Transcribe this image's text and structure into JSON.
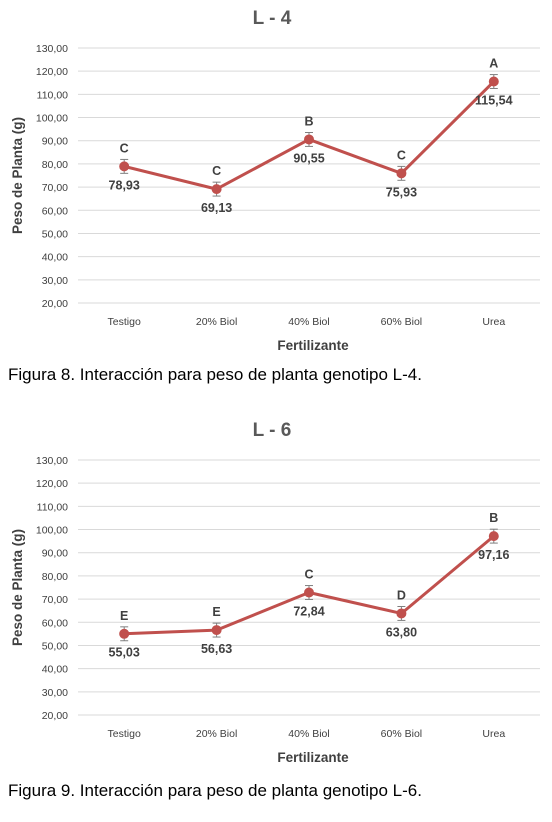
{
  "figures": [
    {
      "caption": "Figura 8. Interacción para peso de planta genotipo L-4.",
      "chart_data": {
        "type": "line",
        "title": "L - 4",
        "xlabel": "Fertilizante",
        "ylabel": "Peso de Planta (g)",
        "ylim": [
          20,
          130
        ],
        "ytick_step": 10,
        "ytick_labels": [
          "20,00",
          "30,00",
          "40,00",
          "50,00",
          "60,00",
          "70,00",
          "80,00",
          "90,00",
          "100,00",
          "110,00",
          "120,00",
          "130,00"
        ],
        "grid": true,
        "categories": [
          "Testigo",
          "20% Biol",
          "40% Biol",
          "60% Biol",
          "Urea"
        ],
        "values": [
          78.93,
          69.13,
          90.55,
          75.93,
          115.54
        ],
        "value_labels": [
          "78,93",
          "69,13",
          "90,55",
          "75,93",
          "115,54"
        ],
        "letters": [
          "C",
          "C",
          "B",
          "C",
          "A"
        ],
        "error": [
          3,
          3,
          3,
          3,
          3
        ],
        "color": "#c0504d"
      }
    },
    {
      "caption": "Figura 9. Interacción para peso de planta genotipo L-6.",
      "chart_data": {
        "type": "line",
        "title": "L - 6",
        "xlabel": "Fertilizante",
        "ylabel": "Peso de Planta (g)",
        "ylim": [
          20,
          130
        ],
        "ytick_step": 10,
        "ytick_labels": [
          "20,00",
          "30,00",
          "40,00",
          "50,00",
          "60,00",
          "70,00",
          "80,00",
          "90,00",
          "100,00",
          "110,00",
          "120,00",
          "130,00"
        ],
        "grid": true,
        "categories": [
          "Testigo",
          "20% Biol",
          "40% Biol",
          "60% Biol",
          "Urea"
        ],
        "values": [
          55.03,
          56.63,
          72.84,
          63.8,
          97.16
        ],
        "value_labels": [
          "55,03",
          "56,63",
          "72,84",
          "63,80",
          "97,16"
        ],
        "letters": [
          "E",
          "E",
          "C",
          "D",
          "B"
        ],
        "error": [
          3,
          3,
          3,
          3,
          3
        ],
        "color": "#c0504d"
      }
    }
  ]
}
